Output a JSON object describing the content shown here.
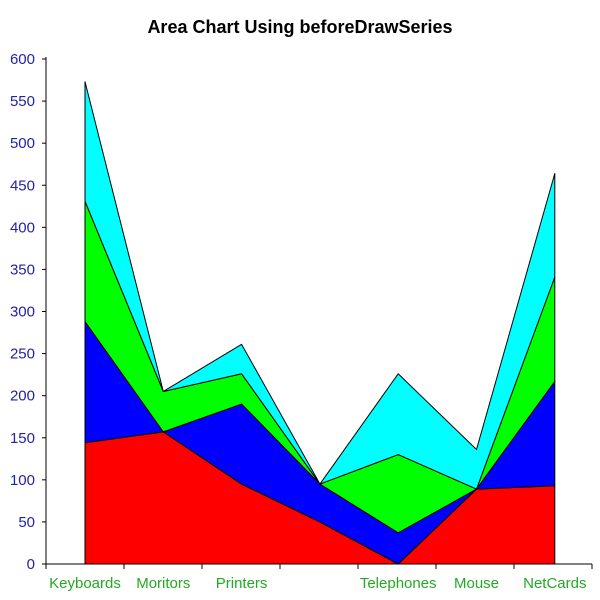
{
  "chart_data": {
    "type": "area",
    "stacked": true,
    "title": "Area Chart Using beforeDrawSeries",
    "xlabel": "",
    "ylabel": "",
    "categories": [
      "Keyboards",
      "Moritors",
      "Printers",
      "",
      "Telephones",
      "Mouse",
      "NetCards"
    ],
    "ylim": [
      0,
      600
    ],
    "yticks": [
      0,
      50,
      100,
      150,
      200,
      250,
      300,
      350,
      400,
      450,
      500,
      550,
      600
    ],
    "grid": false,
    "legend": "none",
    "series": [
      {
        "color": "#ff0000",
        "values": [
          144,
          157,
          95,
          50,
          0,
          89,
          93
        ]
      },
      {
        "color": "#0000ff",
        "values": [
          144,
          0,
          95,
          45,
          37,
          0,
          124
        ]
      },
      {
        "color": "#00ff00",
        "values": [
          143,
          48,
          36,
          0,
          93,
          0,
          124
        ]
      },
      {
        "color": "#00ffff",
        "values": [
          142,
          0,
          35,
          0,
          96,
          47,
          123
        ]
      }
    ],
    "colors": {
      "ytick_text": "#2222aa",
      "xtick_text": "#22aa22",
      "axis": "#000000"
    }
  }
}
